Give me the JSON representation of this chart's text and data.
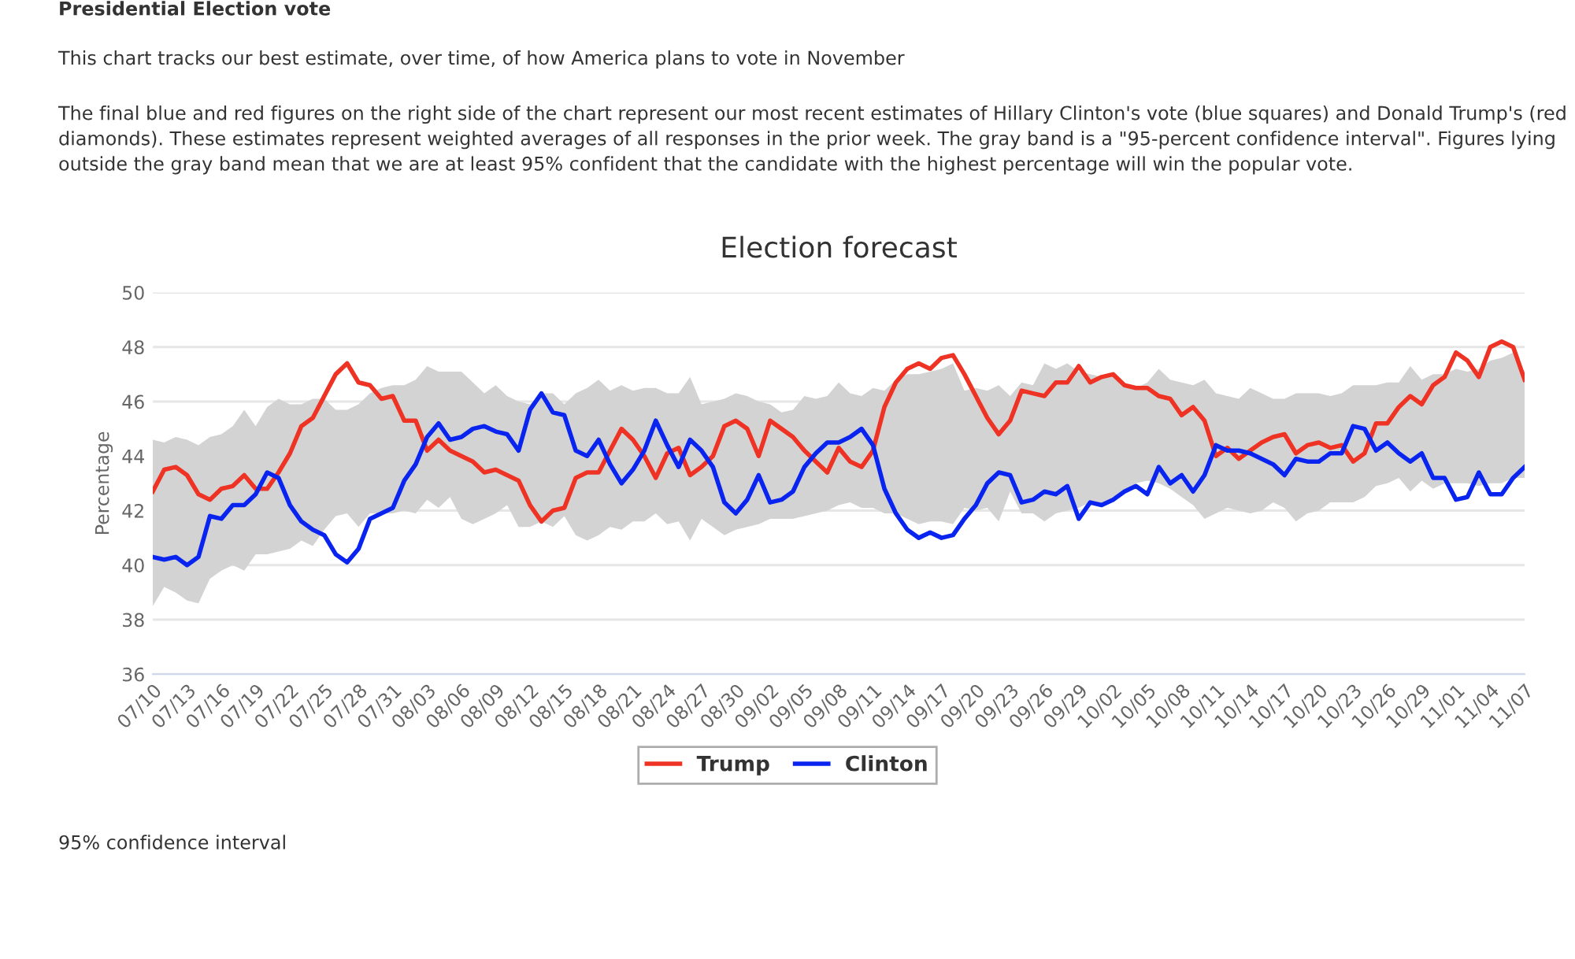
{
  "chart_data": {
    "type": "line",
    "title": "Election forecast",
    "ylabel": "Percentage",
    "annotations": [
      "Presidential Election vote",
      "This chart tracks our best estimate, over time, of how America plans to vote in November",
      "The final blue and red figures on the right side of the chart represent our most recent estimates of Hillary Clinton's vote (blue squares) and Donald Trump's (red diamonds). These estimates represent weighted averages of all responses in the prior week. The gray band is a \"95-percent confidence interval\". Figures lying outside the gray band mean that we are at least 95% confident that the candidate with the highest percentage will win the popular vote.",
      "95% confidence interval"
    ],
    "categories": [
      "07/10",
      null,
      null,
      "07/13",
      null,
      null,
      "07/16",
      null,
      null,
      "07/19",
      null,
      null,
      "07/22",
      null,
      null,
      "07/25",
      null,
      null,
      "07/28",
      null,
      null,
      "07/31",
      null,
      null,
      "08/03",
      null,
      null,
      "08/06",
      null,
      null,
      "08/09",
      null,
      null,
      "08/12",
      null,
      null,
      "08/15",
      null,
      null,
      "08/18",
      null,
      null,
      "08/21",
      null,
      null,
      "08/24",
      null,
      null,
      "08/27",
      null,
      null,
      "08/30",
      null,
      null,
      "09/02",
      null,
      null,
      "09/05",
      null,
      null,
      "09/08",
      null,
      null,
      "09/11",
      null,
      null,
      "09/14",
      null,
      null,
      "09/17",
      null,
      null,
      "09/20",
      null,
      null,
      "09/23",
      null,
      null,
      "09/26",
      null,
      null,
      "09/29",
      null,
      null,
      "10/02",
      null,
      null,
      "10/05",
      null,
      null,
      "10/08",
      null,
      null,
      "10/11",
      null,
      null,
      "10/14",
      null,
      null,
      "10/17",
      null,
      null,
      "10/20",
      null,
      null,
      "10/23",
      null,
      null,
      "10/26",
      null,
      null,
      "10/29",
      null,
      null,
      "11/01",
      null,
      null,
      "11/04",
      null,
      null,
      "11/07"
    ],
    "series": [
      {
        "type": "area",
        "color": "#d3d3d3",
        "values": [
          null,
          null,
          null,
          null,
          null,
          null,
          null,
          null,
          null,
          null,
          null,
          null,
          null,
          null,
          null,
          null,
          null,
          null,
          null,
          null,
          null,
          null,
          null,
          null,
          null,
          null,
          null,
          null,
          null,
          null,
          null,
          null,
          null,
          null,
          null,
          null,
          null,
          null,
          null,
          null,
          null,
          null,
          null,
          null,
          null,
          null,
          null,
          null,
          null,
          null,
          null,
          null,
          null,
          null,
          null,
          null,
          null,
          null,
          null,
          null,
          null,
          null,
          null,
          null,
          null,
          null,
          null,
          null,
          null,
          null,
          null,
          null,
          null,
          null,
          null,
          null,
          null,
          null,
          null,
          null,
          null,
          null,
          null,
          null,
          null,
          null,
          null,
          null,
          null,
          null,
          null,
          null,
          null,
          null,
          null,
          null,
          null,
          null,
          null,
          null,
          null,
          null,
          null,
          null,
          null,
          null,
          null,
          null,
          null,
          null,
          null,
          null,
          null,
          null,
          null,
          null,
          null,
          null,
          null,
          null,
          null
        ],
        "upper": [
          44.6,
          44.5,
          44.7,
          44.6,
          44.4,
          44.7,
          44.8,
          45.1,
          45.7,
          45.1,
          45.8,
          46.1,
          45.9,
          45.9,
          46.1,
          46.1,
          45.7,
          45.7,
          45.9,
          46.3,
          46.5,
          46.6,
          46.6,
          46.8,
          47.3,
          47.1,
          47.1,
          47.1,
          46.7,
          46.3,
          46.6,
          46.2,
          46.0,
          45.9,
          46.3,
          46.3,
          45.9,
          46.3,
          46.5,
          46.8,
          46.4,
          46.6,
          46.4,
          46.5,
          46.5,
          46.3,
          46.3,
          46.9,
          45.9,
          46.0,
          46.1,
          46.3,
          46.2,
          46.0,
          45.9,
          45.6,
          45.7,
          46.2,
          46.1,
          46.2,
          46.7,
          46.3,
          46.2,
          46.5,
          46.4,
          46.8,
          47.0,
          47.0,
          47.1,
          47.2,
          47.4,
          46.4,
          46.5,
          46.4,
          46.6,
          46.2,
          46.7,
          46.6,
          47.4,
          47.2,
          47.4,
          47.1,
          47.0,
          46.9,
          46.9,
          46.6,
          46.5,
          46.7,
          47.2,
          46.8,
          46.7,
          46.6,
          46.8,
          46.3,
          46.2,
          46.1,
          46.5,
          46.3,
          46.1,
          46.1,
          46.3,
          46.3,
          46.3,
          46.2,
          46.3,
          46.6,
          46.6,
          46.6,
          46.7,
          46.7,
          47.3,
          46.8,
          47.0,
          47.0,
          47.2,
          47.1,
          47.2,
          47.5,
          47.6,
          47.8,
          47.1
        ],
        "lower": [
          38.5,
          39.2,
          39.0,
          38.7,
          38.6,
          39.5,
          39.8,
          40.0,
          39.8,
          40.4,
          40.4,
          40.5,
          40.6,
          40.9,
          40.7,
          41.3,
          41.8,
          41.9,
          41.4,
          41.9,
          41.9,
          41.9,
          42.0,
          41.9,
          42.4,
          42.1,
          42.5,
          41.7,
          41.5,
          41.7,
          41.9,
          42.2,
          41.4,
          41.4,
          41.6,
          41.4,
          41.8,
          41.1,
          40.9,
          41.1,
          41.4,
          41.3,
          41.6,
          41.6,
          41.9,
          41.5,
          41.6,
          40.9,
          41.7,
          41.4,
          41.1,
          41.3,
          41.4,
          41.5,
          41.7,
          41.7,
          41.7,
          41.8,
          41.9,
          42.0,
          42.2,
          42.3,
          42.1,
          42.1,
          41.9,
          41.9,
          41.7,
          41.5,
          41.6,
          41.6,
          41.5,
          42.1,
          42.0,
          42.1,
          41.6,
          42.7,
          41.9,
          41.9,
          41.6,
          41.9,
          42.0,
          42.1,
          42.3,
          42.2,
          42.5,
          42.7,
          43.0,
          43.1,
          43.0,
          42.8,
          42.5,
          42.2,
          41.7,
          41.9,
          42.1,
          42.0,
          41.9,
          42.0,
          42.3,
          42.1,
          41.6,
          41.9,
          42.0,
          42.3,
          42.3,
          42.3,
          42.5,
          42.9,
          43.0,
          43.2,
          42.7,
          43.1,
          42.8,
          43.0,
          43.0,
          43.0,
          42.9,
          43.0,
          43.0,
          43.2,
          43.2
        ]
      },
      {
        "name": "Trump",
        "color": "#ee3224",
        "values": [
          42.7,
          43.5,
          43.6,
          43.3,
          42.6,
          42.4,
          42.8,
          42.9,
          43.3,
          42.8,
          42.8,
          43.4,
          44.1,
          45.1,
          45.4,
          46.2,
          47.0,
          47.4,
          46.7,
          46.6,
          46.1,
          46.2,
          45.3,
          45.3,
          44.2,
          44.6,
          44.2,
          44.0,
          43.8,
          43.4,
          43.5,
          43.3,
          43.1,
          42.2,
          41.6,
          42.0,
          42.1,
          43.2,
          43.4,
          43.4,
          44.2,
          45.0,
          44.6,
          44.0,
          43.2,
          44.1,
          44.3,
          43.3,
          43.6,
          44.0,
          45.1,
          45.3,
          45.0,
          44.0,
          45.3,
          45.0,
          44.7,
          44.2,
          43.8,
          43.4,
          44.3,
          43.8,
          43.6,
          44.2,
          45.8,
          46.7,
          47.2,
          47.4,
          47.2,
          47.6,
          47.7,
          47.0,
          46.2,
          45.4,
          44.8,
          45.3,
          46.4,
          46.3,
          46.2,
          46.7,
          46.7,
          47.3,
          46.7,
          46.9,
          47.0,
          46.6,
          46.5,
          46.5,
          46.2,
          46.1,
          45.5,
          45.8,
          45.3,
          44.0,
          44.3,
          43.9,
          44.2,
          44.5,
          44.7,
          44.8,
          44.1,
          44.4,
          44.5,
          44.3,
          44.4,
          43.8,
          44.1,
          45.2,
          45.2,
          45.8,
          46.2,
          45.9,
          46.6,
          46.9,
          47.8,
          47.5,
          46.9,
          48.0,
          48.2,
          48.0,
          46.8
        ]
      },
      {
        "name": "Clinton",
        "color": "#0a24f0",
        "values": [
          40.3,
          40.2,
          40.3,
          40.0,
          40.3,
          41.8,
          41.7,
          42.2,
          42.2,
          42.6,
          43.4,
          43.2,
          42.2,
          41.6,
          41.3,
          41.1,
          40.4,
          40.1,
          40.6,
          41.7,
          41.9,
          42.1,
          43.1,
          43.7,
          44.7,
          45.2,
          44.6,
          44.7,
          45.0,
          45.1,
          44.9,
          44.8,
          44.2,
          45.7,
          46.3,
          45.6,
          45.5,
          44.2,
          44.0,
          44.6,
          43.7,
          43.0,
          43.5,
          44.2,
          45.3,
          44.4,
          43.6,
          44.6,
          44.2,
          43.6,
          42.3,
          41.9,
          42.4,
          43.3,
          42.3,
          42.4,
          42.7,
          43.6,
          44.1,
          44.5,
          44.5,
          44.7,
          45.0,
          44.4,
          42.8,
          41.9,
          41.3,
          41.0,
          41.2,
          41.0,
          41.1,
          41.7,
          42.2,
          43.0,
          43.4,
          43.3,
          42.3,
          42.4,
          42.7,
          42.6,
          42.9,
          41.7,
          42.3,
          42.2,
          42.4,
          42.7,
          42.9,
          42.6,
          43.6,
          43.0,
          43.3,
          42.7,
          43.3,
          44.4,
          44.2,
          44.2,
          44.1,
          43.9,
          43.7,
          43.3,
          43.9,
          43.8,
          43.8,
          44.1,
          44.1,
          45.1,
          45.0,
          44.2,
          44.5,
          44.1,
          43.8,
          44.1,
          43.2,
          43.2,
          42.4,
          42.5,
          43.4,
          42.6,
          42.6,
          43.2,
          43.6
        ]
      }
    ],
    "ylim": [
      36,
      50
    ],
    "yticks": [
      36,
      38,
      40,
      42,
      44,
      46,
      48,
      50
    ],
    "grid": "y",
    "legend": "bottom"
  }
}
